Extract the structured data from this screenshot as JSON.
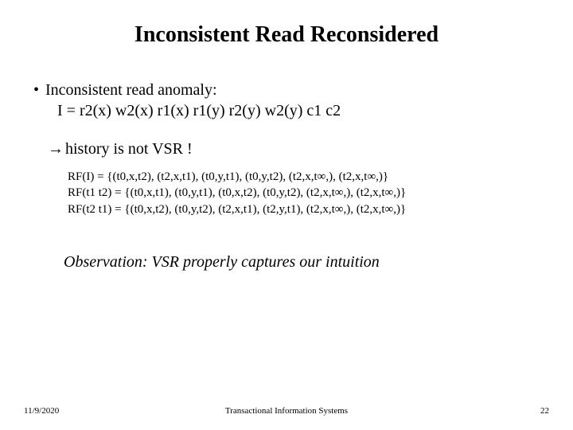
{
  "title": "Inconsistent Read Reconsidered",
  "bullet": {
    "heading": "Inconsistent read anomaly:",
    "formula": "I = r2(x) w2(x) r1(x) r1(y) r2(y) w2(y) c1 c2"
  },
  "arrow_text": "history is not VSR !",
  "rf": {
    "line1": "RF(I) = {(t0,x,t2), (t2,x,t1), (t0,y,t1), (t0,y,t2), (t2,x,t∞,), (t2,x,t∞,)}",
    "line2": "RF(t1 t2) = {(t0,x,t1), (t0,y,t1), (t0,x,t2), (t0,y,t2), (t2,x,t∞,), (t2,x,t∞,)}",
    "line3": "RF(t2 t1) = {(t0,x,t2), (t0,y,t2), (t2,x,t1), (t2,y,t1), (t2,x,t∞,), (t2,x,t∞,)}"
  },
  "observation": "Observation: VSR properly captures our intuition",
  "footer": {
    "date": "11/9/2020",
    "center": "Transactional Information Systems",
    "page": "22"
  },
  "colors": {
    "background": "#ffffff",
    "text": "#000000"
  },
  "typography": {
    "title_fontsize": 28,
    "body_fontsize": 20,
    "rf_fontsize": 15,
    "footer_fontsize": 11,
    "font_family": "Times New Roman"
  }
}
